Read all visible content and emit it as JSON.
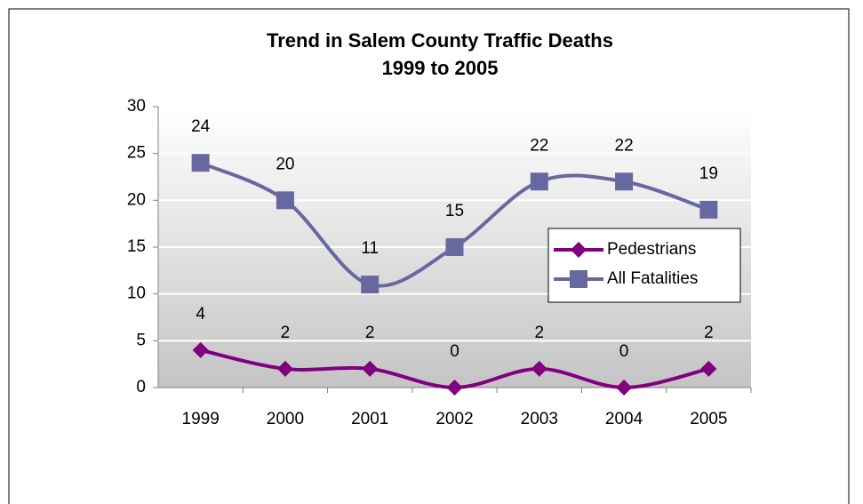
{
  "chart_data": {
    "type": "line",
    "title": "Trend in Salem County Traffic Deaths",
    "subtitle": "1999 to 2005",
    "categories": [
      "1999",
      "2000",
      "2001",
      "2002",
      "2003",
      "2004",
      "2005"
    ],
    "series": [
      {
        "name": "Pedestrians",
        "color": "#800080",
        "marker": "diamond",
        "values": [
          4,
          2,
          2,
          0,
          2,
          0,
          2
        ]
      },
      {
        "name": "All Fatalities",
        "color": "#6868a0",
        "marker": "square",
        "values": [
          24,
          20,
          11,
          15,
          22,
          22,
          19
        ]
      }
    ],
    "ylim": [
      0,
      30
    ],
    "yticks": [
      0,
      5,
      10,
      15,
      20,
      25,
      30
    ],
    "grid": true,
    "smooth": true,
    "legend": "right"
  }
}
